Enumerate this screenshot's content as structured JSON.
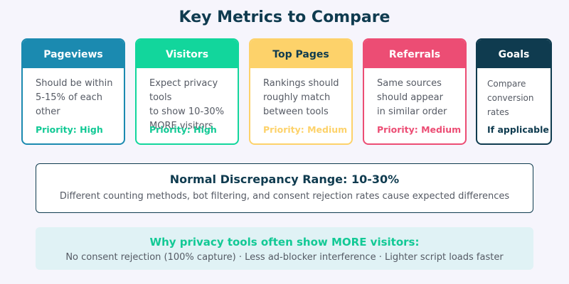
{
  "title": "Key Metrics to Compare",
  "cards": [
    {
      "id": "pageviews",
      "header": "Pageviews",
      "description": "Should be within\n5-15% of each\nother",
      "priority": "Priority: High",
      "border_color": "#1b8ab0",
      "header_bg": "#1b8ab0",
      "header_text_color": "#ffffff",
      "priority_color": "#12c995"
    },
    {
      "id": "visitors",
      "header": "Visitors",
      "description": "Expect privacy tools\nto show 10-30%\nMORE visitors",
      "priority": "Priority: High",
      "border_color": "#12d69c",
      "header_bg": "#12d69c",
      "header_text_color": "#ffffff",
      "priority_color": "#12c995"
    },
    {
      "id": "top-pages",
      "header": "Top Pages",
      "description": "Rankings should\nroughly match\nbetween tools",
      "priority": "Priority: Medium",
      "border_color": "#fdd26a",
      "header_bg": "#fdd26a",
      "header_text_color": "#0f3b4f",
      "priority_color": "#fdd26a"
    },
    {
      "id": "referrals",
      "header": "Referrals",
      "description": "Same sources\nshould appear\nin similar order",
      "priority": "Priority: Medium",
      "border_color": "#ec4d74",
      "header_bg": "#ec4d74",
      "header_text_color": "#ffffff",
      "priority_color": "#ec4d74"
    },
    {
      "id": "goals",
      "header": "Goals",
      "description": "Compare\nconversion\nrates",
      "priority": "If applicable",
      "border_color": "#0f3b4f",
      "header_bg": "#0f3b4f",
      "header_text_color": "#ffffff",
      "priority_color": "#0f3b4f"
    }
  ],
  "range": {
    "title": "Normal Discrepancy Range: 10-30%",
    "subtitle": "Different counting methods, bot filtering, and consent rejection rates cause expected differences"
  },
  "why": {
    "title": "Why privacy tools often show MORE visitors:",
    "subtitle": "No consent rejection (100% capture) · Less ad-blocker interference · Lighter script loads faster"
  }
}
